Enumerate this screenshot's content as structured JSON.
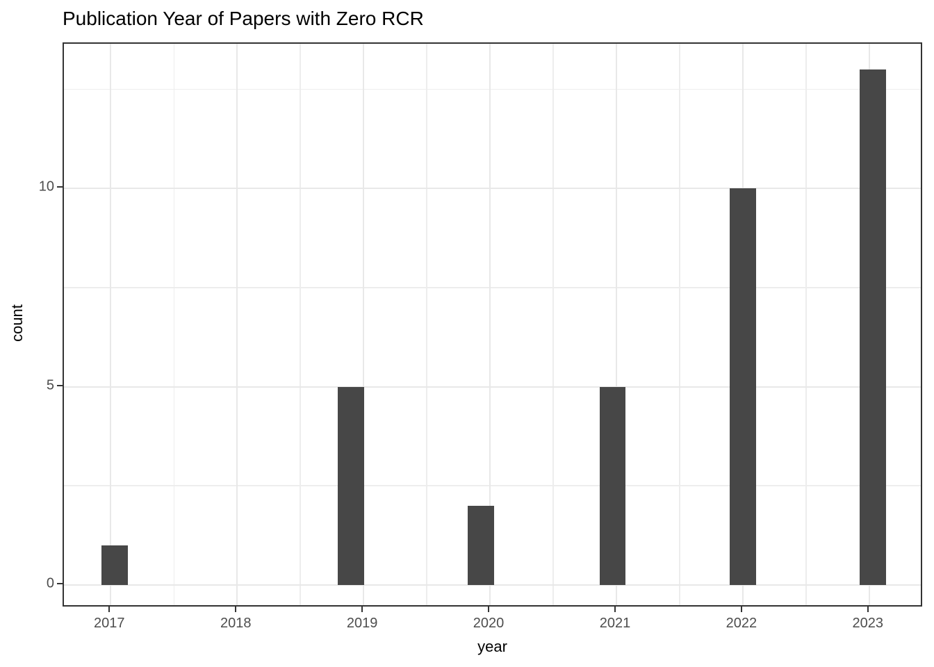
{
  "chart_data": {
    "type": "bar",
    "subtype": "histogram",
    "title": "Publication Year of Papers with Zero RCR",
    "xlabel": "year",
    "ylabel": "count",
    "categories": [
      "2017",
      "2018",
      "2019",
      "2020",
      "2021",
      "2022",
      "2023"
    ],
    "values": [
      1,
      0,
      5,
      2,
      5,
      10,
      13
    ],
    "bars": [
      {
        "year": "2017",
        "count": 1,
        "bin_center": 2017.03
      },
      {
        "year": "2018",
        "count": 0,
        "bin_center": null
      },
      {
        "year": "2019",
        "count": 5,
        "bin_center": 2018.9
      },
      {
        "year": "2020",
        "count": 2,
        "bin_center": 2019.93
      },
      {
        "year": "2021",
        "count": 5,
        "bin_center": 2020.97
      },
      {
        "year": "2022",
        "count": 10,
        "bin_center": 2022.0
      },
      {
        "year": "2023",
        "count": 13,
        "bin_center": 2023.03
      }
    ],
    "bin_width_years": 0.207,
    "x_ticks": [
      2017,
      2018,
      2019,
      2020,
      2021,
      2022,
      2023
    ],
    "x_minor_ticks": [
      2017.5,
      2018.5,
      2019.5,
      2020.5,
      2021.5,
      2022.5
    ],
    "y_ticks": [
      0,
      5,
      10
    ],
    "y_minor_ticks": [
      2.5,
      7.5,
      12.5
    ],
    "xlim": [
      2016.63,
      2023.43
    ],
    "ylim": [
      -0.58,
      13.65
    ],
    "grid": true,
    "legend_position": "none",
    "colors": {
      "bar_fill": "#474747",
      "panel_border": "#333333",
      "grid_major": "#e8e8e8",
      "grid_minor": "#ededed",
      "tick_mark": "#333333",
      "tick_label": "#4d4d4d",
      "axis_title": "#000000",
      "title": "#000000",
      "panel_bg": "#ffffff",
      "plot_bg": "#ffffff"
    }
  }
}
